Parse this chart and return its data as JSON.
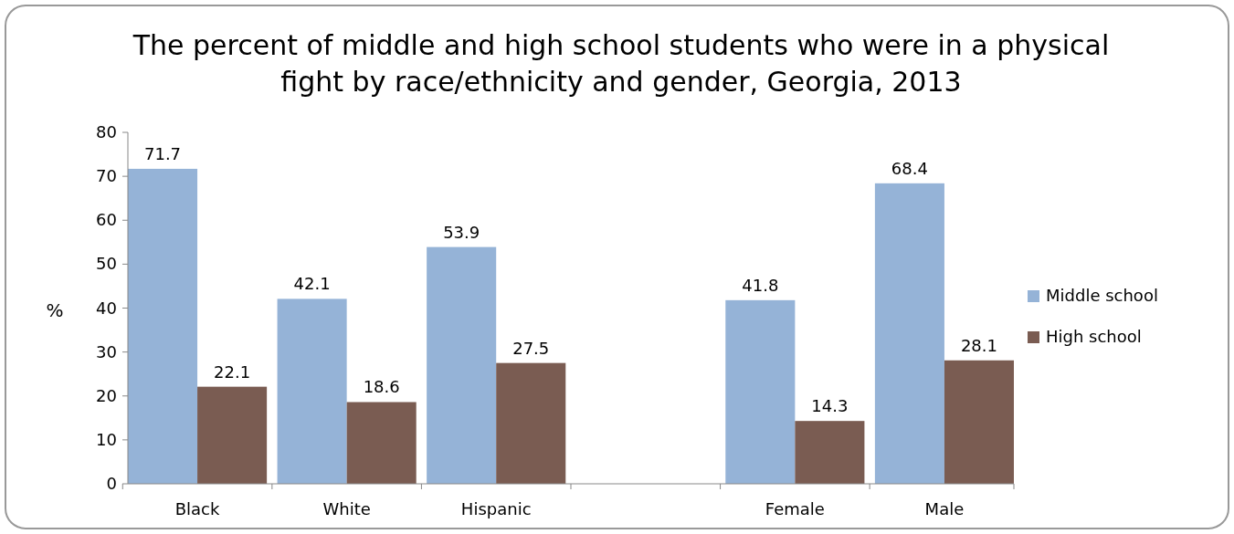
{
  "chart_data": {
    "type": "bar",
    "title": "The percent of middle and high school students who were in a physical fight by race/ethnicity and gender, Georgia, 2013",
    "ylabel": "%",
    "categories": [
      "Black",
      "White",
      "Hispanic",
      null,
      "Female",
      "Male"
    ],
    "series": [
      {
        "name": "Middle school",
        "color": "#95b3d7",
        "values": [
          71.7,
          42.1,
          53.9,
          null,
          41.8,
          68.4
        ]
      },
      {
        "name": "High school",
        "color": "#7a5c52",
        "values": [
          22.1,
          18.6,
          27.5,
          null,
          14.3,
          28.1
        ]
      }
    ],
    "ylim": [
      0,
      80
    ],
    "yticks": [
      0,
      10,
      20,
      30,
      40,
      50,
      60,
      70,
      80
    ],
    "data_labels": true,
    "legend": "right",
    "grid": false
  }
}
